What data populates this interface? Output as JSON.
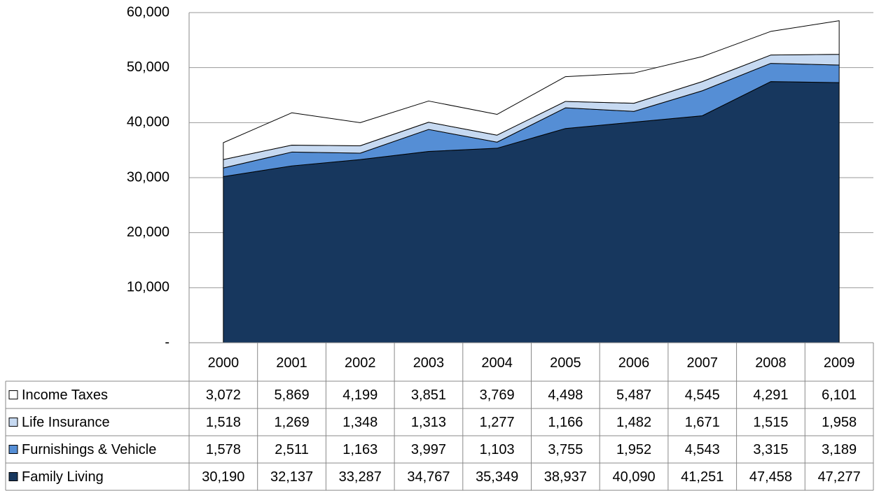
{
  "chart_data": {
    "type": "stacked_area",
    "categories": [
      "2000",
      "2001",
      "2002",
      "2003",
      "2004",
      "2005",
      "2006",
      "2007",
      "2008",
      "2009"
    ],
    "series": [
      {
        "name": "Income Taxes",
        "color": "#ffffff",
        "values": [
          3072,
          5869,
          4199,
          3851,
          3769,
          4498,
          5487,
          4545,
          4291,
          6101
        ],
        "value_labels": [
          "3,072",
          "5,869",
          "4,199",
          "3,851",
          "3,769",
          "4,498",
          "5,487",
          "4,545",
          "4,291",
          "6,101"
        ]
      },
      {
        "name": "Life Insurance",
        "color": "#c6d9f1",
        "values": [
          1518,
          1269,
          1348,
          1313,
          1277,
          1166,
          1482,
          1671,
          1515,
          1958
        ],
        "value_labels": [
          "1,518",
          "1,269",
          "1,348",
          "1,313",
          "1,277",
          "1,166",
          "1,482",
          "1,671",
          "1,515",
          "1,958"
        ]
      },
      {
        "name": "Furnishings & Vehicle",
        "color": "#558ed5",
        "values": [
          1578,
          2511,
          1163,
          3997,
          1103,
          3755,
          1952,
          4543,
          3315,
          3189
        ],
        "value_labels": [
          "1,578",
          "2,511",
          "1,163",
          "3,997",
          "1,103",
          "3,755",
          "1,952",
          "4,543",
          "3,315",
          "3,189"
        ]
      },
      {
        "name": "Family Living",
        "color": "#17375e",
        "values": [
          30190,
          32137,
          33287,
          34767,
          35349,
          38937,
          40090,
          41251,
          47458,
          47277
        ],
        "value_labels": [
          "30,190",
          "32,137",
          "33,287",
          "34,767",
          "35,349",
          "38,937",
          "40,090",
          "41,251",
          "47,458",
          "47,277"
        ]
      }
    ],
    "ylim": [
      0,
      60000
    ],
    "yticks": [
      {
        "value": 0,
        "label": "-"
      },
      {
        "value": 10000,
        "label": "10,000"
      },
      {
        "value": 20000,
        "label": "20,000"
      },
      {
        "value": 30000,
        "label": "30,000"
      },
      {
        "value": 40000,
        "label": "40,000"
      },
      {
        "value": 50000,
        "label": "50,000"
      },
      {
        "value": 60000,
        "label": "60,000"
      }
    ],
    "grid": true
  }
}
